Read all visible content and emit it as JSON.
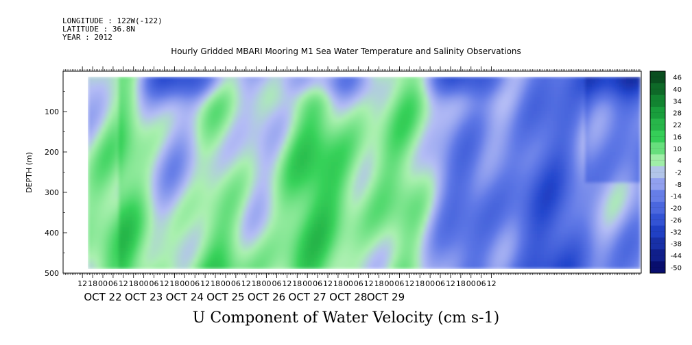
{
  "header": {
    "longitude": "LONGITUDE : 122W(-122)",
    "latitude": "LATITUDE : 36.8N",
    "year": "YEAR : 2012"
  },
  "chart_data": {
    "type": "heatmap",
    "title": "Hourly Gridded MBARI Mooring M1 Sea Water Temperature and Salinity Observations",
    "footer": "U Component of Water Velocity (cm s-1)",
    "xlabel": "",
    "ylabel": "DEPTH (m)",
    "ylim": [
      500,
      0
    ],
    "y_ticks": [
      100,
      200,
      300,
      400,
      500
    ],
    "x_hour_labels": [
      "12",
      "18",
      "00",
      "06",
      "12",
      "18",
      "00",
      "06",
      "12",
      "18",
      "00",
      "06",
      "12",
      "18",
      "00",
      "06",
      "12",
      "18",
      "00",
      "06",
      "12",
      "18",
      "00",
      "06",
      "12",
      "18",
      "00",
      "06",
      "12",
      "18",
      "00",
      "06",
      "12",
      "18",
      "00",
      "06",
      "12",
      "18",
      "00",
      "06",
      "12"
    ],
    "x_day_labels": [
      "OCT 22",
      "OCT 23",
      "OCT 24",
      "OCT 25",
      "OCT 26",
      "OCT 27",
      "OCT 28",
      "OCT 29"
    ],
    "colorbar_levels": [
      "46",
      "40",
      "34",
      "28",
      "22",
      "16",
      "10",
      "4",
      "-2",
      "-8",
      "-14",
      "-20",
      "-26",
      "-32",
      "-38",
      "-44",
      "-50"
    ],
    "colorbar_range": [
      -50,
      50
    ],
    "colors": {
      "negative_dark": "#0a1a8a",
      "negative_light": "#b6bdf5",
      "positive_light": "#a8f0b0",
      "positive_dark": "#0a4a1a"
    }
  }
}
